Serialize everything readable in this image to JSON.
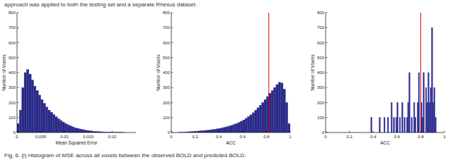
{
  "intro_text": "approach was applied to both the testing set and a separate Rhesus dataset.",
  "caption": "Fig. 6. (i) Histogram of MSE across all voxels between the observed BOLD and predicted BOLD.",
  "chart_data": [
    {
      "type": "histogram",
      "x_label": "Mean Squared Error",
      "y_label": "Number of Voxels",
      "color": "#2b2b80",
      "xlim": [
        0,
        0.025
      ],
      "ylim": [
        0,
        800
      ],
      "xticks": [
        0,
        0.005,
        0.01,
        0.015,
        0.02
      ],
      "yticks": [
        0,
        100,
        200,
        300,
        400,
        500,
        600,
        700,
        800
      ],
      "bins": [
        0,
        0.0005,
        0.001,
        0.0015,
        0.002,
        0.0025,
        0.003,
        0.0035,
        0.004,
        0.0045,
        0.005,
        0.0055,
        0.006,
        0.0065,
        0.007,
        0.0075,
        0.008,
        0.0085,
        0.009,
        0.0095,
        0.01,
        0.0105,
        0.011,
        0.0115,
        0.012,
        0.0125,
        0.013,
        0.0135,
        0.014,
        0.0145,
        0.015,
        0.0155,
        0.016,
        0.0165,
        0.017,
        0.0175,
        0.018,
        0.0185,
        0.019,
        0.0195,
        0.02,
        0.0205,
        0.021,
        0.0215,
        0.022,
        0.0225,
        0.023,
        0.0235,
        0.024,
        0.0245,
        0.025
      ],
      "values": [
        60,
        150,
        300,
        400,
        420,
        390,
        350,
        310,
        280,
        250,
        220,
        195,
        170,
        150,
        135,
        120,
        105,
        92,
        80,
        70,
        60,
        52,
        45,
        38,
        32,
        28,
        24,
        20,
        17,
        14,
        12,
        10,
        8,
        7,
        6,
        5,
        4,
        3,
        3,
        2,
        2,
        1,
        1,
        1,
        1,
        0,
        0,
        0,
        0,
        0
      ]
    },
    {
      "type": "histogram",
      "x_label": "ACC",
      "y_label": "Number of Voxels",
      "color": "#2b2b80",
      "xlim": [
        0,
        1
      ],
      "ylim": [
        0,
        800
      ],
      "xticks": [
        0,
        0.2,
        0.4,
        0.6,
        0.8,
        1
      ],
      "yticks": [
        0,
        100,
        200,
        300,
        400,
        500,
        600,
        700,
        800
      ],
      "threshold": 0.82,
      "bins": [
        0,
        0.02,
        0.04,
        0.06,
        0.08,
        0.1,
        0.12,
        0.14,
        0.16,
        0.18,
        0.2,
        0.22,
        0.24,
        0.26,
        0.28,
        0.3,
        0.32,
        0.34,
        0.36,
        0.38,
        0.4,
        0.42,
        0.44,
        0.46,
        0.48,
        0.5,
        0.52,
        0.54,
        0.56,
        0.58,
        0.6,
        0.62,
        0.64,
        0.66,
        0.68,
        0.7,
        0.72,
        0.74,
        0.76,
        0.78,
        0.8,
        0.82,
        0.84,
        0.86,
        0.88,
        0.9,
        0.92,
        0.94,
        0.96,
        0.98,
        1
      ],
      "values": [
        0,
        0,
        0,
        1,
        2,
        3,
        4,
        5,
        6,
        7,
        8,
        10,
        11,
        13,
        14,
        16,
        18,
        20,
        22,
        25,
        28,
        31,
        35,
        39,
        43,
        48,
        54,
        60,
        67,
        75,
        84,
        95,
        106,
        118,
        132,
        148,
        165,
        182,
        200,
        220,
        240,
        262,
        280,
        300,
        320,
        335,
        330,
        290,
        200,
        60
      ]
    },
    {
      "type": "histogram",
      "x_label": "ACC",
      "y_label": "Number of Voxels",
      "color": "#2b2b80",
      "xlim": [
        0,
        1
      ],
      "ylim": [
        0,
        800
      ],
      "xticks": [
        0,
        0.2,
        0.4,
        0.6,
        0.8,
        1
      ],
      "yticks": [
        0,
        100,
        200,
        300,
        400,
        500,
        600,
        700,
        800
      ],
      "threshold": 0.8,
      "bins": [
        0.35,
        0.36,
        0.37,
        0.38,
        0.39,
        0.4,
        0.41,
        0.42,
        0.43,
        0.44,
        0.45,
        0.46,
        0.47,
        0.48,
        0.49,
        0.5,
        0.51,
        0.52,
        0.53,
        0.54,
        0.55,
        0.56,
        0.57,
        0.58,
        0.59,
        0.6,
        0.61,
        0.62,
        0.63,
        0.64,
        0.65,
        0.66,
        0.67,
        0.68,
        0.69,
        0.7,
        0.71,
        0.72,
        0.73,
        0.74,
        0.75,
        0.76,
        0.77,
        0.78,
        0.79,
        0.8,
        0.81,
        0.82,
        0.83,
        0.84,
        0.85,
        0.86,
        0.87,
        0.88,
        0.89,
        0.9,
        0.91,
        0.92,
        0.93,
        0.94,
        0.95
      ],
      "values": [
        0,
        0,
        0,
        100,
        0,
        0,
        0,
        0,
        0,
        0,
        100,
        0,
        0,
        0,
        100,
        0,
        0,
        100,
        0,
        0,
        200,
        0,
        100,
        0,
        100,
        200,
        0,
        100,
        0,
        200,
        0,
        100,
        0,
        100,
        200,
        400,
        0,
        100,
        0,
        200,
        100,
        0,
        200,
        400,
        0,
        200,
        100,
        400,
        0,
        300,
        200,
        400,
        200,
        300,
        700,
        200,
        300,
        100,
        0,
        0
      ]
    }
  ]
}
